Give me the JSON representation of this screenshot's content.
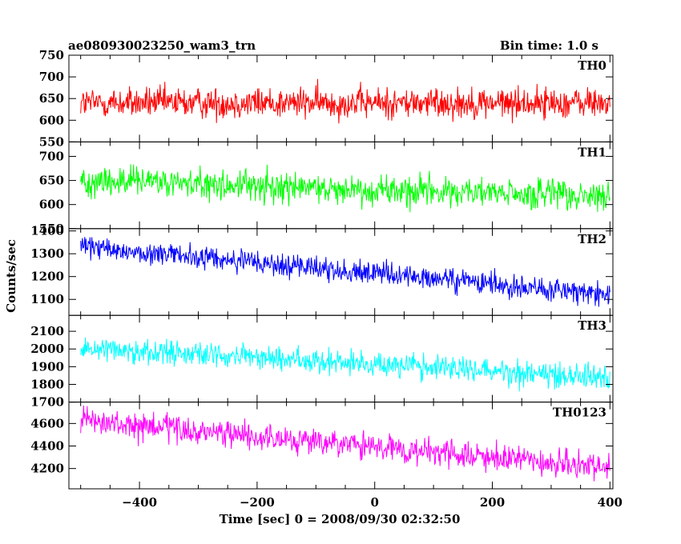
{
  "header": {
    "file_name": "ae080930023250_wam3_trn",
    "bin_time": "Bin time: 1.0 s"
  },
  "chart_data": {
    "type": "line",
    "title": "ae080930023250_wam3_trn",
    "subtitle": "Bin time: 1.0 s",
    "xlabel": "Time [sec] 0 = 2008/09/30 02:32:50",
    "ylabel": "Counts/sec",
    "xlim": [
      -520,
      405
    ],
    "x_range": [
      -500,
      400
    ],
    "x_step": 1,
    "x_ticks": [
      -400,
      -200,
      0,
      200,
      400
    ],
    "grid": false,
    "panels": [
      {
        "name": "TH0",
        "color": "#ff0000",
        "ylim": [
          550,
          750
        ],
        "y_ticks": [
          550,
          600,
          650,
          700,
          750
        ],
        "trend": {
          "start": 640,
          "end": 640
        },
        "noise_amplitude": 33,
        "series": [
          {
            "x": -500,
            "y": 640
          },
          {
            "x": -400,
            "y": 640
          },
          {
            "x": -300,
            "y": 640
          },
          {
            "x": -200,
            "y": 640
          },
          {
            "x": -100,
            "y": 640
          },
          {
            "x": 0,
            "y": 640
          },
          {
            "x": 100,
            "y": 640
          },
          {
            "x": 200,
            "y": 640
          },
          {
            "x": 300,
            "y": 640
          },
          {
            "x": 400,
            "y": 640
          }
        ]
      },
      {
        "name": "TH1",
        "color": "#00ff00",
        "ylim": [
          550,
          730
        ],
        "y_ticks": [
          550,
          600,
          650,
          700
        ],
        "trend": {
          "start": 650,
          "end": 615
        },
        "noise_amplitude": 30,
        "series": [
          {
            "x": -500,
            "y": 650
          },
          {
            "x": -400,
            "y": 646
          },
          {
            "x": -300,
            "y": 642
          },
          {
            "x": -200,
            "y": 638
          },
          {
            "x": -100,
            "y": 634
          },
          {
            "x": 0,
            "y": 631
          },
          {
            "x": 100,
            "y": 627
          },
          {
            "x": 200,
            "y": 623
          },
          {
            "x": 300,
            "y": 619
          },
          {
            "x": 400,
            "y": 615
          }
        ]
      },
      {
        "name": "TH2",
        "color": "#0000ff",
        "ylim": [
          1030,
          1410
        ],
        "y_ticks": [
          1100,
          1200,
          1300,
          1400
        ],
        "trend": {
          "start": 1330,
          "end": 1120
        },
        "noise_amplitude": 48,
        "series": [
          {
            "x": -500,
            "y": 1330
          },
          {
            "x": -400,
            "y": 1307
          },
          {
            "x": -300,
            "y": 1283
          },
          {
            "x": -200,
            "y": 1260
          },
          {
            "x": -100,
            "y": 1237
          },
          {
            "x": 0,
            "y": 1213
          },
          {
            "x": 100,
            "y": 1190
          },
          {
            "x": 200,
            "y": 1167
          },
          {
            "x": 300,
            "y": 1143
          },
          {
            "x": 400,
            "y": 1120
          }
        ]
      },
      {
        "name": "TH3",
        "color": "#00ffff",
        "ylim": [
          1700,
          2190
        ],
        "y_ticks": [
          1700,
          1800,
          1900,
          2000,
          2100
        ],
        "trend": {
          "start": 2010,
          "end": 1840
        },
        "noise_amplitude": 65,
        "series": [
          {
            "x": -500,
            "y": 2010
          },
          {
            "x": -400,
            "y": 1991
          },
          {
            "x": -300,
            "y": 1972
          },
          {
            "x": -200,
            "y": 1953
          },
          {
            "x": -100,
            "y": 1934
          },
          {
            "x": 0,
            "y": 1916
          },
          {
            "x": 100,
            "y": 1897
          },
          {
            "x": 200,
            "y": 1878
          },
          {
            "x": 300,
            "y": 1859
          },
          {
            "x": 400,
            "y": 1840
          }
        ]
      },
      {
        "name": "TH0123",
        "color": "#ff00ff",
        "ylim": [
          4020,
          4790
        ],
        "y_ticks": [
          4200,
          4400,
          4600
        ],
        "trend": {
          "start": 4620,
          "end": 4200
        },
        "noise_amplitude": 110,
        "series": [
          {
            "x": -500,
            "y": 4620
          },
          {
            "x": -400,
            "y": 4573
          },
          {
            "x": -300,
            "y": 4527
          },
          {
            "x": -200,
            "y": 4480
          },
          {
            "x": -100,
            "y": 4433
          },
          {
            "x": 0,
            "y": 4387
          },
          {
            "x": 100,
            "y": 4340
          },
          {
            "x": 200,
            "y": 4293
          },
          {
            "x": 300,
            "y": 4247
          },
          {
            "x": 400,
            "y": 4200
          }
        ]
      }
    ]
  }
}
